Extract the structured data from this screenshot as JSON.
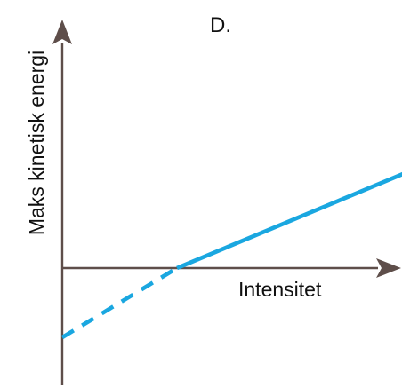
{
  "chart_data": {
    "type": "line",
    "title": "D.",
    "xlabel": "Intensitet",
    "ylabel": "Maks kinetisk energi",
    "grid": false,
    "axis_ticks": false,
    "series": [
      {
        "segments": [
          {
            "style": "dashed",
            "x": [
              0,
              1
            ],
            "y": [
              -0.62,
              0
            ]
          },
          {
            "style": "solid",
            "x": [
              1,
              3.9
            ],
            "y": [
              0,
              1.24
            ]
          }
        ]
      }
    ],
    "colors": {
      "line": "#1AA7E0",
      "axis": "#5E4E4A",
      "text": "#111111"
    }
  }
}
